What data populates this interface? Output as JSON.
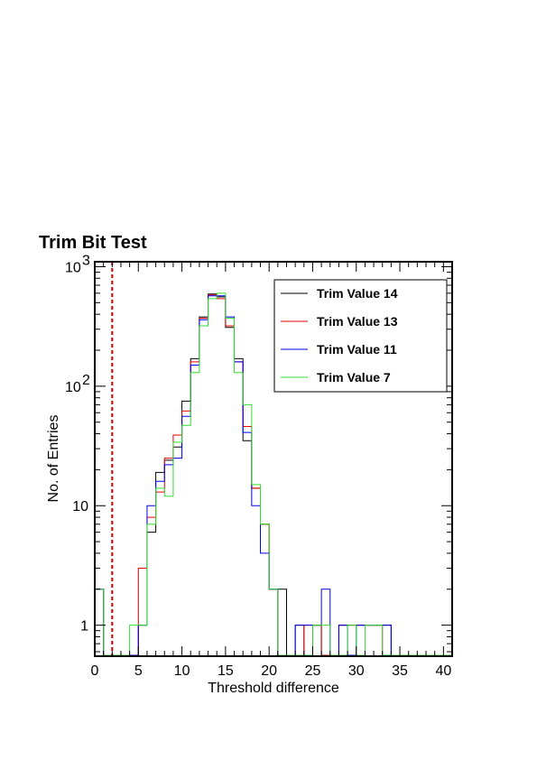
{
  "chart_data": {
    "type": "histogram",
    "title": "Trim Bit Test",
    "xlabel": "Threshold difference",
    "ylabel": "No. of Entries",
    "xlim": [
      0,
      41
    ],
    "ylim": [
      0.55,
      1100
    ],
    "yscale": "log",
    "bin_width": 1,
    "x_ticks": [
      "0",
      "5",
      "10",
      "15",
      "20",
      "25",
      "30",
      "35",
      "40"
    ],
    "y_ticks": [
      {
        "base": "1",
        "exp": ""
      },
      {
        "base": "10",
        "exp": ""
      },
      {
        "base": "10",
        "exp": "2"
      },
      {
        "base": "10",
        "exp": "3"
      }
    ],
    "legend_position": "top-right",
    "threshold_marker": {
      "x": 2,
      "color": "#cc0000",
      "style": "dashed"
    },
    "series": [
      {
        "name": "Trim Value 14",
        "color": "#000000",
        "counts": [
          2,
          0,
          0,
          0,
          0,
          1,
          6,
          19,
          24,
          31,
          75,
          170,
          380,
          590,
          560,
          310,
          170,
          35,
          14,
          7,
          2,
          2,
          0,
          1,
          0,
          1,
          0,
          0,
          1,
          1,
          1,
          1,
          1,
          1,
          0,
          0,
          0,
          0,
          0,
          0,
          0
        ]
      },
      {
        "name": "Trim Value 13",
        "color": "#ee0000",
        "counts": [
          2,
          0,
          0,
          0,
          0,
          3,
          8,
          13,
          25,
          39,
          62,
          160,
          370,
          580,
          540,
          320,
          160,
          46,
          14,
          7,
          2,
          0,
          0,
          0,
          1,
          1,
          0,
          0,
          1,
          1,
          1,
          1,
          1,
          0,
          0,
          0,
          0,
          0,
          0,
          0,
          0
        ]
      },
      {
        "name": "Trim Value 11",
        "color": "#0000ee",
        "counts": [
          2,
          0,
          0,
          0,
          0,
          1,
          10,
          16,
          22,
          25,
          56,
          150,
          360,
          570,
          570,
          380,
          160,
          41,
          10,
          4,
          2,
          0,
          0,
          1,
          1,
          1,
          2,
          0,
          1,
          0,
          1,
          1,
          1,
          1,
          0,
          0,
          0,
          0,
          0,
          0,
          0
        ]
      },
      {
        "name": "Trim Value 7",
        "color": "#33dd33",
        "counts": [
          2,
          0,
          0,
          0,
          1,
          1,
          7,
          14,
          12,
          34,
          47,
          130,
          320,
          540,
          600,
          370,
          130,
          70,
          15,
          7,
          2,
          0,
          0,
          0,
          0,
          1,
          1,
          0,
          0,
          1,
          0,
          1,
          1,
          0,
          0,
          0,
          0,
          0,
          0,
          0,
          0
        ]
      }
    ]
  }
}
